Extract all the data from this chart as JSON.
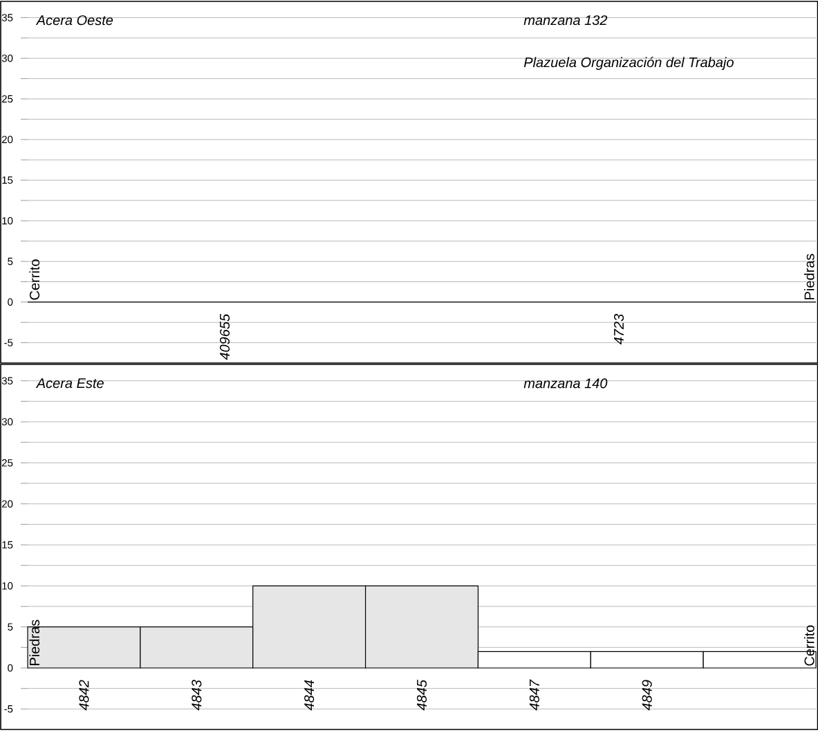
{
  "chart_data": [
    {
      "type": "bar",
      "title": "Acera Oeste",
      "subtitle": "manzana 132",
      "annotations": [
        "Plazuela Organización del Trabajo"
      ],
      "ylabel": "Cerrito",
      "y2label": "Piedras",
      "categories": [
        "409655",
        "4723"
      ],
      "values": [
        0,
        0
      ],
      "colors": [
        "#e6e6e6",
        "#e6e6e6"
      ],
      "ylim": [
        -7.5,
        37
      ],
      "yticks": [
        -5,
        {
          "value": -2.5,
          "label": null
        },
        0,
        {
          "value": 2.5,
          "label": null
        },
        5,
        {
          "value": 7.5,
          "label": null
        },
        10,
        {
          "value": 12.5,
          "label": null
        },
        15,
        {
          "value": 17.5,
          "label": null
        },
        20,
        {
          "value": 22.5,
          "label": null
        },
        25,
        {
          "value": 27.5,
          "label": null
        },
        30,
        {
          "value": 32.5,
          "label": null
        },
        35
      ],
      "grid": true
    },
    {
      "type": "bar",
      "title": "Acera Este",
      "subtitle": "manzana 140",
      "ylabel": "Piedras",
      "y2label": "Cerrito",
      "categories": [
        "4842",
        "4843",
        "4844",
        "4845",
        "4847",
        "4849",
        null
      ],
      "values": [
        5,
        5,
        10,
        10,
        2,
        2,
        2
      ],
      "colors": [
        "#e6e6e6",
        "#e6e6e6",
        "#e6e6e6",
        "#e6e6e6",
        "#ffffff",
        "#ffffff",
        "#ffffff"
      ],
      "ylim": [
        -7.5,
        37
      ],
      "yticks": [
        -5,
        {
          "value": -2.5,
          "label": null
        },
        0,
        {
          "value": 2.5,
          "label": null
        },
        5,
        {
          "value": 7.5,
          "label": null
        },
        10,
        {
          "value": 12.5,
          "label": null
        },
        15,
        {
          "value": 17.5,
          "label": null
        },
        20,
        {
          "value": 22.5,
          "label": null
        },
        25,
        {
          "value": 27.5,
          "label": null
        },
        30,
        {
          "value": 32.5,
          "label": null
        },
        35
      ],
      "grid": true
    }
  ]
}
